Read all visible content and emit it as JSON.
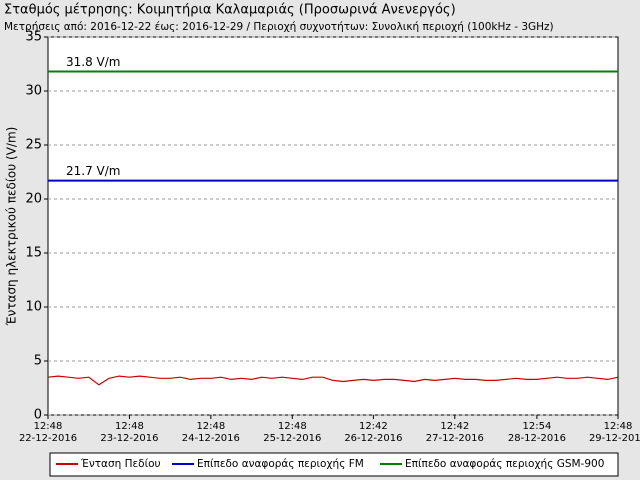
{
  "chart_data": {
    "type": "line",
    "title": "Σταθμός μέτρησης: Κοιμητήρια Καλαμαριάς (Προσωρινά Ανενεργός)",
    "subtitle": "Μετρήσεις από: 2016-12-22 έως: 2016-12-29 / Περιοχή συχνοτήτων: Συνολική περιοχή (100kHz - 3GHz)",
    "y_label": "Ένταση ηλεκτρικού πεδίου (V/m)",
    "x": [
      "2016-12-22 12:48",
      "2016-12-22 15:48",
      "2016-12-22 18:48",
      "2016-12-22 21:48",
      "2016-12-23 00:48",
      "2016-12-23 03:48",
      "2016-12-23 06:48",
      "2016-12-23 09:48",
      "2016-12-23 12:48",
      "2016-12-23 15:48",
      "2016-12-23 18:48",
      "2016-12-23 21:48",
      "2016-12-24 00:48",
      "2016-12-24 03:48",
      "2016-12-24 06:48",
      "2016-12-24 09:48",
      "2016-12-24 12:48",
      "2016-12-24 15:48",
      "2016-12-24 18:48",
      "2016-12-24 21:48",
      "2016-12-25 00:48",
      "2016-12-25 03:48",
      "2016-12-25 06:48",
      "2016-12-25 09:48",
      "2016-12-25 12:48",
      "2016-12-25 15:48",
      "2016-12-25 18:48",
      "2016-12-25 21:48",
      "2016-12-26 00:48",
      "2016-12-26 03:48",
      "2016-12-26 06:48",
      "2016-12-26 09:48",
      "2016-12-26 12:48",
      "2016-12-26 15:48",
      "2016-12-26 18:48",
      "2016-12-26 21:48",
      "2016-12-27 00:48",
      "2016-12-27 03:48",
      "2016-12-27 06:48",
      "2016-12-27 09:48",
      "2016-12-27 12:48",
      "2016-12-27 15:48",
      "2016-12-27 18:48",
      "2016-12-27 21:48",
      "2016-12-28 00:48",
      "2016-12-28 03:48",
      "2016-12-28 06:48",
      "2016-12-28 09:48",
      "2016-12-28 12:48",
      "2016-12-28 15:48",
      "2016-12-28 18:48",
      "2016-12-28 21:48",
      "2016-12-29 00:48",
      "2016-12-29 03:48",
      "2016-12-29 06:48",
      "2016-12-29 09:48",
      "2016-12-29 12:48"
    ],
    "series": [
      {
        "name": "Ένταση Πεδίου",
        "color": "#cc0000",
        "values": [
          3.5,
          3.6,
          3.5,
          3.4,
          3.5,
          2.8,
          3.4,
          3.6,
          3.5,
          3.6,
          3.5,
          3.4,
          3.4,
          3.5,
          3.3,
          3.4,
          3.4,
          3.5,
          3.3,
          3.4,
          3.3,
          3.5,
          3.4,
          3.5,
          3.4,
          3.3,
          3.5,
          3.5,
          3.2,
          3.1,
          3.2,
          3.3,
          3.2,
          3.3,
          3.3,
          3.2,
          3.1,
          3.3,
          3.2,
          3.3,
          3.4,
          3.3,
          3.3,
          3.2,
          3.2,
          3.3,
          3.4,
          3.3,
          3.3,
          3.4,
          3.5,
          3.4,
          3.4,
          3.5,
          3.4,
          3.3,
          3.5
        ]
      }
    ],
    "reference_lines": [
      {
        "name": "Επίπεδο αναφοράς περιοχής FM",
        "color": "#0000cc",
        "value": 21.7,
        "label": "21.7 V/m"
      },
      {
        "name": "Επίπεδο αναφοράς περιοχής GSM-900",
        "color": "#008000",
        "value": 31.8,
        "label": "31.8 V/m"
      }
    ],
    "xlim": [
      "2016-12-22 12:48",
      "2016-12-29 12:48"
    ],
    "xticks": [
      {
        "value": "2016-12-22 12:48",
        "label": "12:48\n22-12-2016"
      },
      {
        "value": "2016-12-23 12:48",
        "label": "12:48\n23-12-2016"
      },
      {
        "value": "2016-12-24 12:48",
        "label": "12:48\n24-12-2016"
      },
      {
        "value": "2016-12-25 12:48",
        "label": "12:48\n25-12-2016"
      },
      {
        "value": "2016-12-26 12:42",
        "label": "12:42\n26-12-2016"
      },
      {
        "value": "2016-12-27 12:42",
        "label": "12:42\n27-12-2016"
      },
      {
        "value": "2016-12-28 12:54",
        "label": "12:54\n28-12-2016"
      },
      {
        "value": "2016-12-29 12:48",
        "label": "12:48\n29-12-2016"
      }
    ],
    "ylim": [
      0,
      35
    ],
    "yticks": [
      0,
      5,
      10,
      15,
      20,
      25,
      30,
      35
    ],
    "grid": true
  }
}
